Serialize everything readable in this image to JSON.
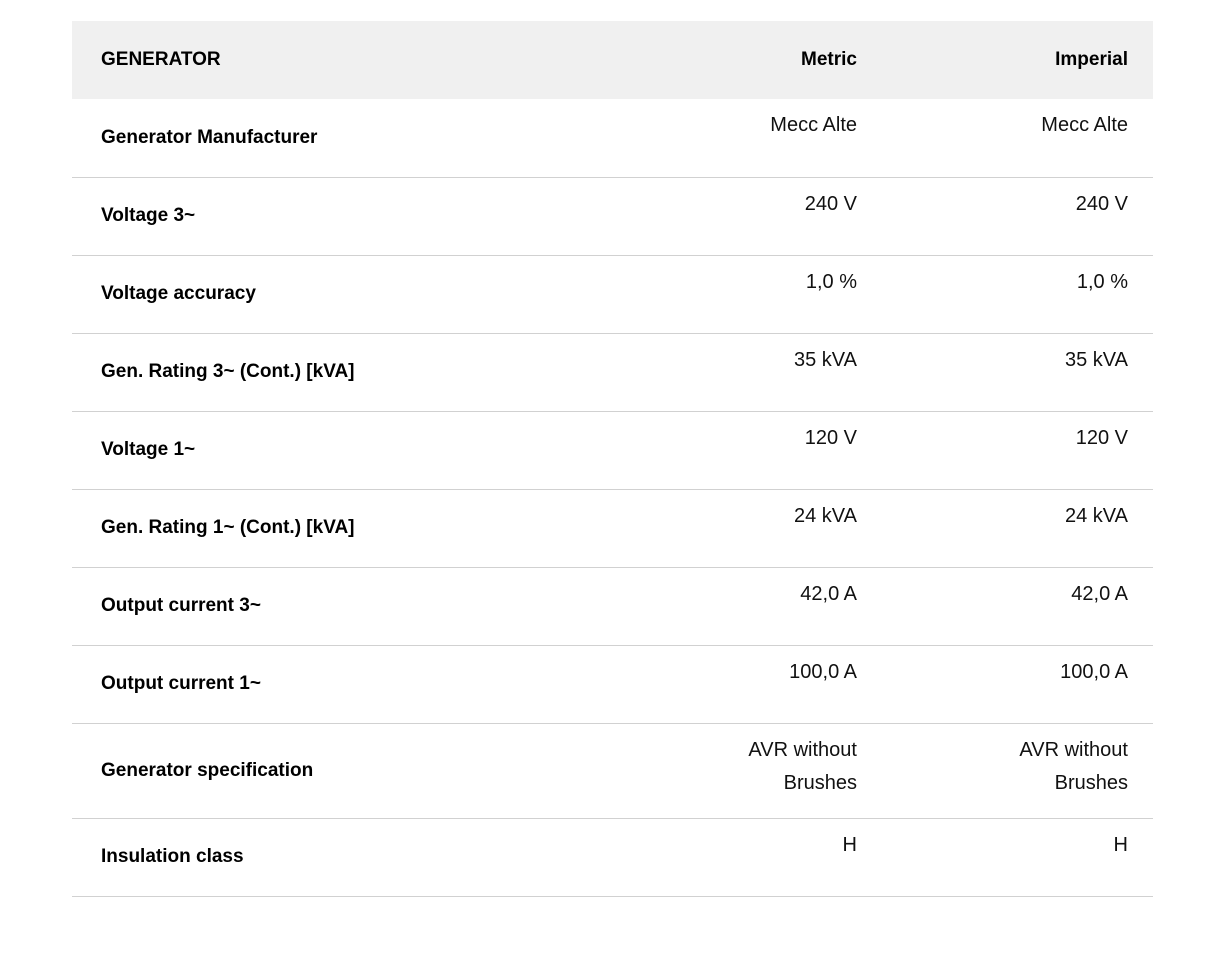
{
  "table": {
    "header": {
      "title": "GENERATOR",
      "metric_label": "Metric",
      "imperial_label": "Imperial"
    },
    "rows": [
      {
        "label": "Generator Manufacturer",
        "metric": "Mecc Alte",
        "imperial": "Mecc Alte"
      },
      {
        "label": "Voltage 3~",
        "metric": "240 V",
        "imperial": "240 V"
      },
      {
        "label": "Voltage accuracy",
        "metric": "1,0 %",
        "imperial": "1,0 %"
      },
      {
        "label": "Gen. Rating 3~ (Cont.) [kVA]",
        "metric": "35 kVA",
        "imperial": "35 kVA"
      },
      {
        "label": "Voltage 1~",
        "metric": "120 V",
        "imperial": "120 V"
      },
      {
        "label": "Gen. Rating 1~ (Cont.) [kVA]",
        "metric": "24 kVA",
        "imperial": "24 kVA"
      },
      {
        "label": "Output current 3~",
        "metric": "42,0 A",
        "imperial": "42,0 A"
      },
      {
        "label": "Output current 1~",
        "metric": "100,0 A",
        "imperial": "100,0 A"
      },
      {
        "label": "Generator specification",
        "metric": "AVR without Brushes",
        "imperial": "AVR without Brushes"
      },
      {
        "label": "Insulation class",
        "metric": "H",
        "imperial": "H"
      }
    ],
    "colors": {
      "header_background": "#f0f0f0",
      "divider": "#d1d1d1",
      "text": "#000000"
    }
  }
}
